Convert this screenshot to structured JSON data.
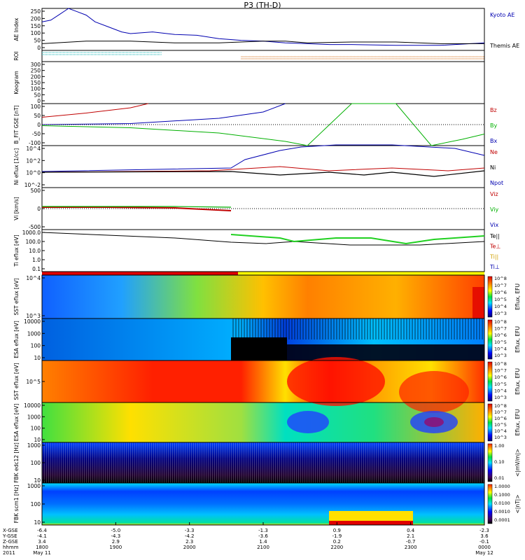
{
  "title": "P3 (TH-D)",
  "chart_data": [
    {
      "type": "line",
      "ylabel": "AE Index",
      "ylim": [
        0,
        250
      ],
      "yticks": [
        "250",
        "200",
        "150",
        "100",
        "50",
        "0"
      ],
      "legend": [
        {
          "label": "Kyoto AE",
          "color": "#0000b0"
        },
        {
          "label": "Themis AE",
          "color": "#000000"
        }
      ],
      "series": [
        {
          "name": "Kyoto AE",
          "color": "#0000b0",
          "x": [
            0,
            0.02,
            0.04,
            0.06,
            0.08,
            0.1,
            0.12,
            0.15,
            0.18,
            0.2,
            0.25,
            0.3,
            0.35,
            0.4,
            0.45,
            0.5,
            0.55,
            0.6,
            0.65,
            0.7,
            0.8,
            0.9,
            1.0
          ],
          "y": [
            170,
            180,
            215,
            260,
            230,
            210,
            170,
            140,
            110,
            100,
            110,
            95,
            90,
            70,
            60,
            55,
            45,
            40,
            35,
            35,
            30,
            30,
            45
          ]
        },
        {
          "name": "Themis AE",
          "color": "#000000",
          "x": [
            0,
            0.1,
            0.2,
            0.3,
            0.4,
            0.45,
            0.5,
            0.55,
            0.6,
            0.7,
            0.8,
            0.9,
            1.0
          ],
          "y": [
            40,
            55,
            55,
            45,
            45,
            50,
            55,
            55,
            45,
            50,
            50,
            40,
            40
          ]
        }
      ]
    },
    {
      "type": "line",
      "ylabel": "ROI",
      "series": [
        {
          "name": "cyan",
          "color": "#00b0b0",
          "x": [
            0,
            0.27
          ],
          "y": [
            2,
            2
          ]
        },
        {
          "name": "orange",
          "color": "#d06000",
          "x": [
            0.45,
            1.0
          ],
          "y": [
            1,
            1
          ]
        }
      ]
    },
    {
      "type": "heatmap",
      "ylabel": "Keogram",
      "ylim": [
        0,
        300
      ],
      "yticks": [
        "300",
        "250",
        "200",
        "150",
        "100",
        "50",
        "0"
      ]
    },
    {
      "type": "line",
      "ylabel": "B_FIT GSE [nT]",
      "ylim": [
        -100,
        100
      ],
      "yticks": [
        "100",
        "50",
        "0",
        "-50",
        "-100"
      ],
      "legend": [
        {
          "label": "Bz",
          "color": "#c00000"
        },
        {
          "label": "By",
          "color": "#00b000"
        },
        {
          "label": "Bx",
          "color": "#0000b0"
        }
      ],
      "series": [
        {
          "name": "Bz",
          "color": "#c00000",
          "x": [
            0,
            0.1,
            0.2,
            0.24
          ],
          "y": [
            35,
            55,
            80,
            100
          ]
        },
        {
          "name": "By",
          "color": "#00b000",
          "x": [
            0,
            0.2,
            0.4,
            0.55,
            0.6,
            0.7,
            0.8,
            0.88,
            0.95,
            1.0
          ],
          "y": [
            -5,
            -15,
            -40,
            -80,
            -100,
            100,
            100,
            -100,
            -70,
            -45
          ]
        },
        {
          "name": "Bx",
          "color": "#0000b0",
          "x": [
            0,
            0.2,
            0.4,
            0.5,
            0.55
          ],
          "y": [
            0,
            5,
            30,
            60,
            100
          ]
        }
      ]
    },
    {
      "type": "line",
      "ylabel": "Ni eflux [1/cc]",
      "yticks": [
        "10^4",
        "10^2",
        "10^0",
        "10^-2"
      ],
      "legend": [
        {
          "label": "Ne",
          "color": "#c00000"
        },
        {
          "label": "Ni",
          "color": "#000000"
        },
        {
          "label": "Npot",
          "color": "#0000b0"
        }
      ]
    },
    {
      "type": "line",
      "ylabel": "Vi [km/s]",
      "yticks": [
        "500",
        "0",
        "-500"
      ],
      "legend": [
        {
          "label": "Viz",
          "color": "#c00000"
        },
        {
          "label": "Viy",
          "color": "#00b000"
        },
        {
          "label": "Vix",
          "color": "#0000b0"
        }
      ]
    },
    {
      "type": "line",
      "ylabel": "Ti eflux [eV]",
      "yticks": [
        "1000.0",
        "100.0",
        "10.0",
        "1.0",
        "0.1"
      ],
      "legend": [
        {
          "label": "Te||",
          "color": "#000000"
        },
        {
          "label": "Te⊥",
          "color": "#c00000"
        },
        {
          "label": "Ti||",
          "color": "#d0a000"
        },
        {
          "label": "Ti⊥",
          "color": "#0000b0"
        }
      ]
    },
    {
      "type": "heatmap",
      "ylabel": "SST eflux [eV]",
      "yticks": [
        "10^4",
        "10^3"
      ],
      "colorbar_label": "Eflux, EFU",
      "colorbar_ticks": [
        "10^8",
        "10^7",
        "10^6",
        "10^5",
        "10^4",
        "10^3"
      ]
    },
    {
      "type": "heatmap",
      "ylabel": "ESA eflux [eV]",
      "yticks": [
        "10000",
        "1000",
        "100",
        "10"
      ],
      "colorbar_label": "Eflux, EFU",
      "colorbar_ticks": [
        "10^8",
        "10^7",
        "10^6",
        "10^5",
        "10^4",
        "10^3"
      ]
    },
    {
      "type": "heatmap",
      "ylabel": "SST eflux [eV]",
      "yticks": [
        "10^5"
      ],
      "colorbar_label": "Eflux, EFU",
      "colorbar_ticks": [
        "10^8",
        "10^7",
        "10^6",
        "10^5",
        "10^4",
        "10^3"
      ]
    },
    {
      "type": "heatmap",
      "ylabel": "ESA eflux [eV]",
      "yticks": [
        "10000",
        "1000",
        "100",
        "10"
      ],
      "colorbar_label": "Eflux, EFU",
      "colorbar_ticks": [
        "10^8",
        "10^7",
        "10^6",
        "10^5",
        "10^4",
        "10^3"
      ]
    },
    {
      "type": "heatmap",
      "ylabel": "FBK edc12 [Hz]",
      "yticks": [
        "1000",
        "100",
        "10"
      ],
      "colorbar_label": "<|mV/m|>",
      "colorbar_ticks": [
        "1.00",
        "0.10",
        "0.01"
      ]
    },
    {
      "type": "heatmap",
      "ylabel": "FBK scm1 [Hz]",
      "yticks": [
        "1000",
        "100",
        "10"
      ],
      "colorbar_label": "<|nT|>",
      "colorbar_ticks": [
        "1.0000",
        "0.1000",
        "0.0100",
        "0.0010",
        "0.0001"
      ]
    }
  ],
  "x_axis": {
    "row_labels": [
      "X-GSE",
      "Y-GSE",
      "Z-GSE",
      "hhmm",
      "2011"
    ],
    "columns": [
      {
        "values": [
          "-6.4",
          "-4.1",
          "3.4",
          "1800",
          "May 11"
        ]
      },
      {
        "values": [
          "-5.0",
          "-4.3",
          "2.9",
          "1900",
          ""
        ]
      },
      {
        "values": [
          "-3.3",
          "-4.2",
          "2.3",
          "2000",
          ""
        ]
      },
      {
        "values": [
          "-1.3",
          "-3.6",
          "1.4",
          "2100",
          ""
        ]
      },
      {
        "values": [
          "0.9",
          "-1.9",
          "0.2",
          "2200",
          ""
        ]
      },
      {
        "values": [
          "0.4",
          "2.1",
          "-0.7",
          "2300",
          ""
        ]
      },
      {
        "values": [
          "-2.3",
          "3.6",
          "-0.1",
          "0000",
          "May 12"
        ]
      }
    ]
  }
}
